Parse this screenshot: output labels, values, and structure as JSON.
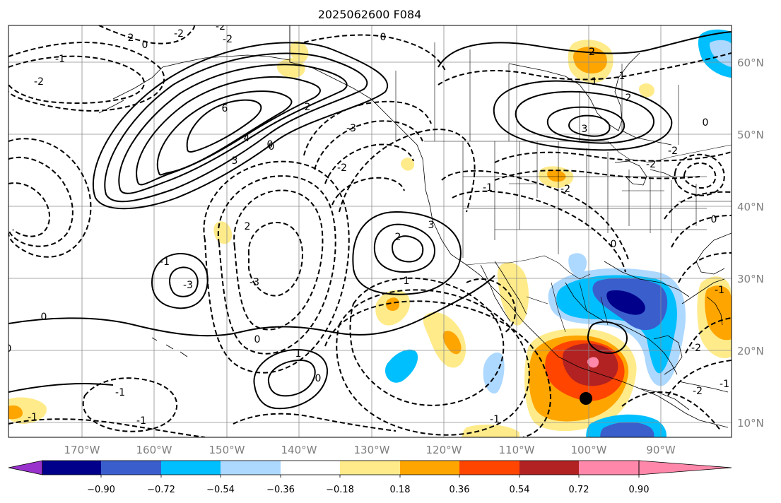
{
  "title": "2025062600 F084",
  "map": {
    "longitude_labels": [
      "170°W",
      "160°W",
      "150°W",
      "140°W",
      "130°W",
      "120°W",
      "110°W",
      "100°W",
      "90°W"
    ],
    "latitude_labels": [
      "60°N",
      "50°N",
      "40°N",
      "30°N",
      "20°N",
      "10°N"
    ],
    "contour_labels": [
      "-2",
      "0",
      "2",
      "6",
      "4",
      "3",
      "-3",
      "0",
      "-2",
      "-3",
      "2",
      "3",
      "-2",
      "1",
      "-2",
      "2",
      "0",
      "2",
      "-3",
      "0",
      "-1",
      "1",
      "-1",
      "0",
      "-1",
      "0",
      "0",
      "-1",
      "-1",
      "0",
      "-2",
      "-1",
      "1",
      "-2",
      "3",
      "2",
      "1",
      "-2",
      "0",
      "0",
      "-1",
      "-1",
      "-2",
      "-2",
      "0",
      "-2",
      "-2",
      "-1",
      "-2"
    ],
    "marker": "black-dot"
  },
  "colorbar": {
    "tick_labels": [
      "−0.90",
      "−0.72",
      "−0.54",
      "−0.36",
      "−0.18",
      "0.18",
      "0.36",
      "0.54",
      "0.72",
      "0.90"
    ],
    "colors": [
      "#9932cc",
      "#00008b",
      "#3a5fcd",
      "#00bfff",
      "#add8ff",
      "#ffffff",
      "#ffeb8a",
      "#ffa500",
      "#ff4500",
      "#b22222",
      "#ff88aa"
    ]
  },
  "colors": {
    "contour": "#000000",
    "grid": "#8c8c8c",
    "tick_text": "#808080"
  }
}
